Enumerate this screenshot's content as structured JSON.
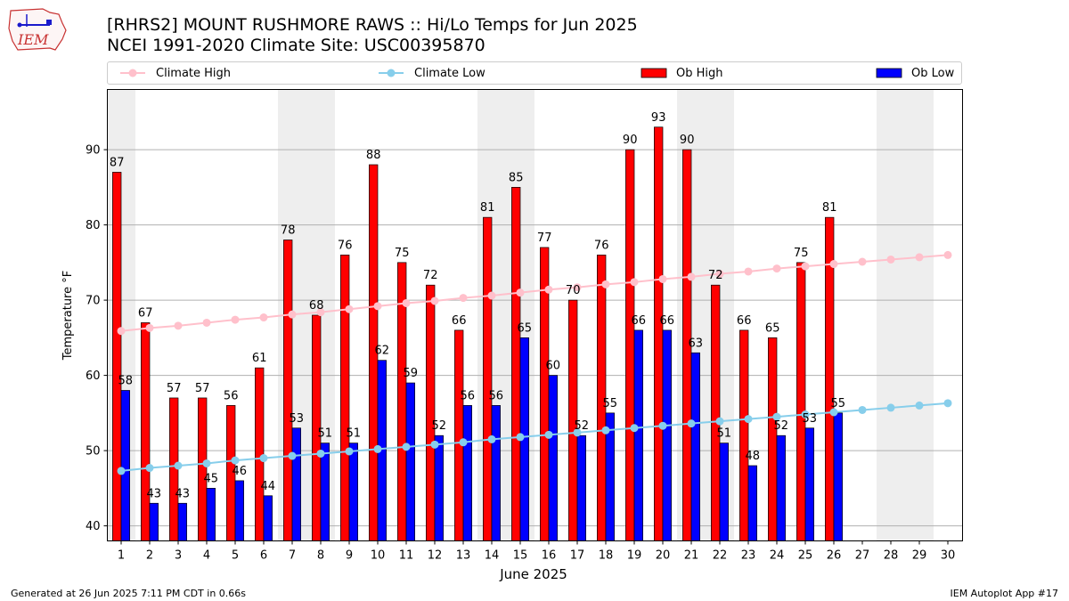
{
  "header": {
    "title_line1": "[RHRS2] MOUNT RUSHMORE RAWS :: Hi/Lo Temps for Jun 2025",
    "title_line2": "NCEI 1991-2020 Climate Site: USC00395870",
    "logo_text": "IEM"
  },
  "footer": {
    "left": "Generated at 26 Jun 2025 7:11 PM CDT in 0.66s",
    "right": "IEM Autoplot App #17"
  },
  "chart_data": {
    "type": "bar",
    "xlabel": "June 2025",
    "ylabel": "Temperature °F",
    "ylim": [
      38,
      98
    ],
    "yticks": [
      40,
      50,
      60,
      70,
      80,
      90
    ],
    "grid": "horizontal",
    "legend_placement": "top",
    "categories": [
      1,
      2,
      3,
      4,
      5,
      6,
      7,
      8,
      9,
      10,
      11,
      12,
      13,
      14,
      15,
      16,
      17,
      18,
      19,
      20,
      21,
      22,
      23,
      24,
      25,
      26,
      27,
      28,
      29,
      30
    ],
    "weekend_shading_days": [
      1,
      7,
      8,
      14,
      15,
      21,
      22,
      28,
      29
    ],
    "series": [
      {
        "name": "Climate High",
        "kind": "line",
        "color": "#ffc0cb",
        "values": [
          65.9,
          66.3,
          66.6,
          67.0,
          67.4,
          67.7,
          68.1,
          68.4,
          68.8,
          69.2,
          69.6,
          69.9,
          70.3,
          70.6,
          71.0,
          71.4,
          71.7,
          72.1,
          72.4,
          72.8,
          73.1,
          73.5,
          73.8,
          74.2,
          74.5,
          74.8,
          75.1,
          75.4,
          75.7,
          76.0
        ]
      },
      {
        "name": "Climate Low",
        "kind": "line",
        "color": "#87ceeb",
        "values": [
          47.3,
          47.7,
          48.0,
          48.3,
          48.7,
          49.0,
          49.3,
          49.6,
          49.9,
          50.2,
          50.5,
          50.8,
          51.1,
          51.5,
          51.8,
          52.1,
          52.4,
          52.7,
          53.0,
          53.3,
          53.6,
          53.9,
          54.2,
          54.5,
          54.8,
          55.1,
          55.4,
          55.7,
          56.0,
          56.3
        ]
      },
      {
        "name": "Ob High",
        "kind": "bar",
        "color": "#ff0000",
        "values": [
          87,
          67,
          57,
          57,
          56,
          61,
          78,
          68,
          76,
          88,
          75,
          72,
          66,
          81,
          85,
          77,
          70,
          76,
          90,
          93,
          90,
          72,
          66,
          65,
          75,
          81,
          null,
          null,
          null,
          null
        ]
      },
      {
        "name": "Ob Low",
        "kind": "bar",
        "color": "#0000ff",
        "values": [
          58,
          43,
          43,
          45,
          46,
          44,
          53,
          51,
          51,
          62,
          59,
          52,
          56,
          56,
          65,
          60,
          52,
          55,
          66,
          66,
          63,
          51,
          48,
          52,
          53,
          55,
          null,
          null,
          null,
          null
        ]
      }
    ]
  }
}
